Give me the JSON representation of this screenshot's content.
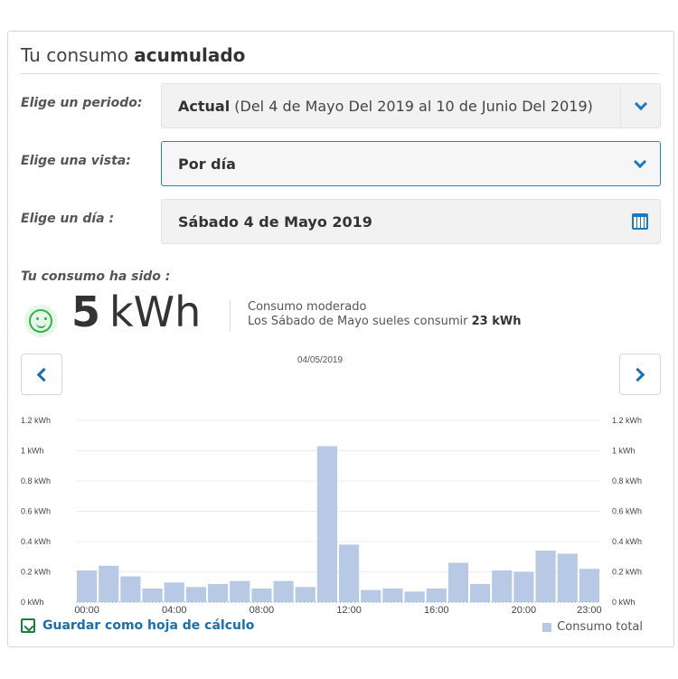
{
  "header": {
    "title_prefix": "Tu consumo ",
    "title_strong": "acumulado"
  },
  "filters": {
    "period": {
      "label": "Elige un periodo:",
      "value_strong": "Actual",
      "value_rest": " (Del 4 de Mayo Del 2019 al 10 de Junio Del 2019)"
    },
    "view": {
      "label": "Elige una vista:",
      "value": "Por día"
    },
    "day": {
      "label": "Elige un día :",
      "value": "Sábado 4 de Mayo 2019"
    }
  },
  "summary": {
    "label": "Tu consumo ha sido :",
    "value": "5",
    "unit": "kWh",
    "status": "Consumo moderado",
    "compare_prefix": "Los Sábado de Mayo sueles consumir ",
    "compare_value": "23 kWh"
  },
  "chart_nav": {
    "date": "04/05/2019"
  },
  "footer": {
    "save_label": "Guardar como hoja de cálculo",
    "legend_label": "Consumo total"
  },
  "colors": {
    "accent": "#1a7bbf",
    "bar": "#b8c9e6",
    "smile": "#35b24a",
    "save_icon": "#1b7f3f"
  },
  "chart_data": {
    "type": "bar",
    "x": [
      "00:00",
      "01:00",
      "02:00",
      "03:00",
      "04:00",
      "05:00",
      "06:00",
      "07:00",
      "08:00",
      "09:00",
      "10:00",
      "11:00",
      "12:00",
      "13:00",
      "14:00",
      "15:00",
      "16:00",
      "17:00",
      "18:00",
      "19:00",
      "20:00",
      "21:00",
      "22:00",
      "23:00"
    ],
    "x_tick_labels": [
      "00:00",
      "04:00",
      "08:00",
      "12:00",
      "16:00",
      "20:00",
      "23:00"
    ],
    "series": [
      {
        "name": "Consumo total",
        "values": [
          0.21,
          0.24,
          0.17,
          0.09,
          0.13,
          0.1,
          0.12,
          0.14,
          0.09,
          0.14,
          0.1,
          1.03,
          0.38,
          0.08,
          0.09,
          0.07,
          0.09,
          0.26,
          0.12,
          0.21,
          0.2,
          0.34,
          0.32,
          0.22
        ]
      }
    ],
    "y_ticks": [
      "0 kWh",
      "0.2 kWh",
      "0.4 kWh",
      "0.6 kWh",
      "0.8 kWh",
      "1 kWh",
      "1.2 kWh"
    ],
    "ylim": [
      0,
      1.2
    ],
    "grid": true,
    "legend": "bottom-right"
  }
}
